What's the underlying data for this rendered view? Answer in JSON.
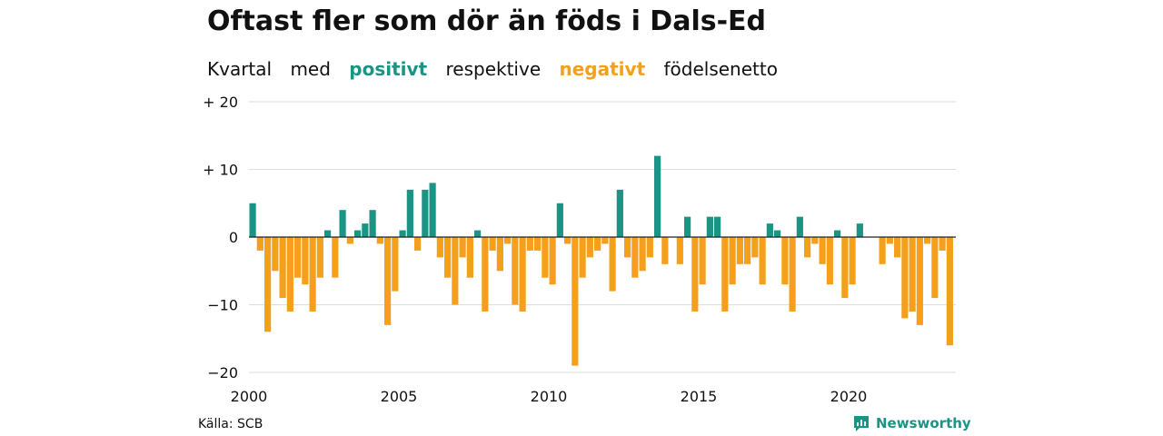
{
  "title": "Oftast fler som dör än föds i Dals-Ed",
  "subtitle": {
    "part1": "Kvartal",
    "part2": "med",
    "positive_word": "positivt",
    "part3": "respektive",
    "negative_word": "negativt",
    "part4": "födelsenetto"
  },
  "colors": {
    "positive": "#1a9484",
    "negative": "#f4a01c",
    "grid": "#dddddd",
    "zero": "#222222"
  },
  "source": "Källa: SCB",
  "brand": {
    "name": "Newsworthy",
    "icon": "newsworthy-logo-icon"
  },
  "chart_data": {
    "type": "bar",
    "xlabel": "",
    "ylabel": "",
    "ylim": [
      -20,
      20
    ],
    "yticks": [
      {
        "value": 20,
        "label": "+ 20"
      },
      {
        "value": 10,
        "label": "+ 10"
      },
      {
        "value": 0,
        "label": "0"
      },
      {
        "value": -10,
        "label": "−10"
      },
      {
        "value": -20,
        "label": "−20"
      }
    ],
    "xticks": [
      "2000",
      "2005",
      "2010",
      "2015",
      "2020"
    ],
    "xtick_years": [
      2000,
      2005,
      2010,
      2015,
      2020
    ],
    "start_year": 2000,
    "grid": true,
    "values": [
      5,
      -2,
      -14,
      -5,
      -9,
      -11,
      -6,
      -7,
      -11,
      -6,
      1,
      -6,
      4,
      -1,
      1,
      2,
      4,
      -1,
      -13,
      -8,
      1,
      7,
      -2,
      7,
      8,
      -3,
      -6,
      -10,
      -3,
      -6,
      1,
      -11,
      -2,
      -5,
      -1,
      -10,
      -11,
      -2,
      -2,
      -6,
      -7,
      5,
      -1,
      -19,
      -6,
      -3,
      -2,
      -1,
      -8,
      7,
      -3,
      -6,
      -5,
      -3,
      12,
      -4,
      0,
      -4,
      3,
      -11,
      -7,
      3,
      3,
      -11,
      -7,
      -4,
      -4,
      -3,
      -7,
      2,
      1,
      -7,
      -11,
      3,
      -3,
      -1,
      -4,
      -7,
      1,
      -9,
      -7,
      2,
      0,
      0,
      -4,
      -1,
      -3,
      -12,
      -11,
      -13,
      -1,
      -9,
      -2,
      -16
    ]
  }
}
